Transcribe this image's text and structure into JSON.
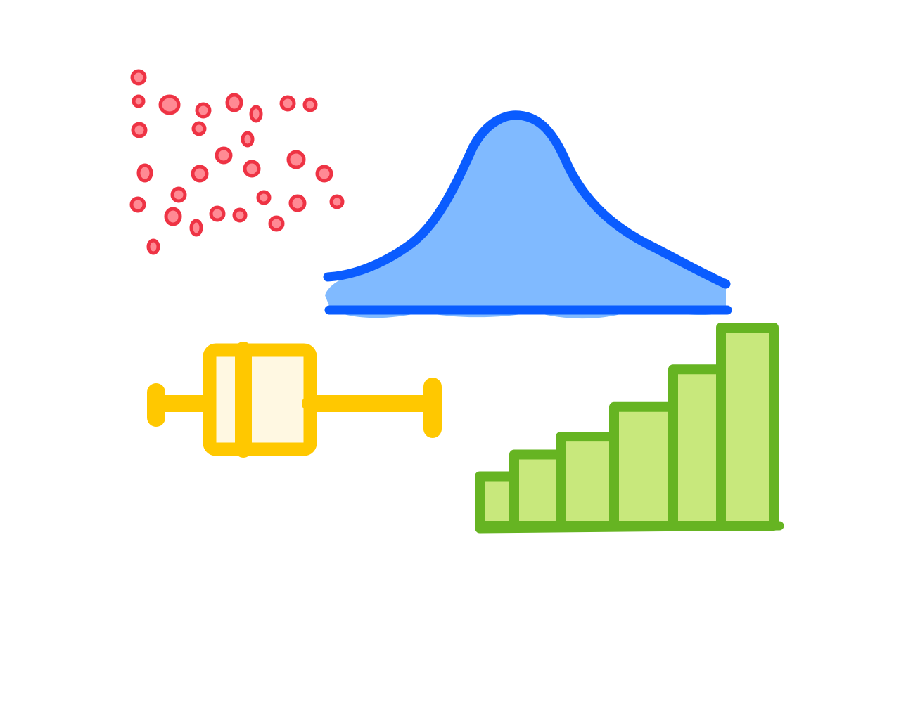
{
  "illustration": {
    "name": "statistics-icons",
    "colors": {
      "scatter_fill": "#ff8a94",
      "scatter_stroke": "#ee3344",
      "bell_fill": "#80baff",
      "bell_stroke": "#0a5cff",
      "box_fill": "#fff8e2",
      "box_stroke": "#ffc800",
      "bar_fill": "#c8e87c",
      "bar_stroke": "#66b422",
      "background": "#ffffff"
    },
    "icons": [
      {
        "id": "scatter",
        "icon": "scatter-plot-icon"
      },
      {
        "id": "bell",
        "icon": "bell-curve-icon"
      },
      {
        "id": "box",
        "icon": "box-plot-icon"
      },
      {
        "id": "bars",
        "icon": "bar-chart-icon"
      }
    ],
    "bars_relative_heights": [
      0.25,
      0.36,
      0.45,
      0.6,
      0.79,
      1.0
    ]
  }
}
